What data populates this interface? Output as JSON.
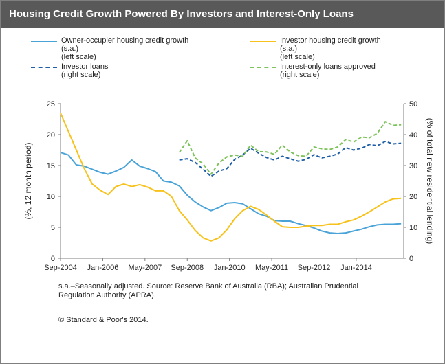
{
  "header": {
    "title": "Housing Credit Growth Powered By Investors  and Interest-Only  Loans"
  },
  "legend": [
    {
      "key": "owner",
      "label": "Owner-occupier housing credit growth\n(s.a.)\n(left scale)",
      "color": "#4aa3d8",
      "dash": ""
    },
    {
      "key": "investor",
      "label": "Investor housing credit growth\n(s.a.)\n(left scale)",
      "color": "#f7c21b",
      "dash": ""
    },
    {
      "key": "investor_loans",
      "label": "Investor loans\n(right scale)",
      "color": "#1f5fa8",
      "dash": "5,3"
    },
    {
      "key": "io_loans",
      "label": "Interest-only loans approved\n(right scale)",
      "color": "#7dc25a",
      "dash": "5,3"
    }
  ],
  "chart_data": {
    "type": "line",
    "title": "Housing Credit Growth Powered By Investors  and Interest-Only  Loans",
    "ylabel": "(%, 12 month period)",
    "y2label": "(% of total new residential lending)",
    "ylim": [
      0,
      25
    ],
    "y2lim": [
      0,
      50
    ],
    "yticks": [
      "0",
      "5",
      "10",
      "15",
      "20",
      "25"
    ],
    "y2ticks": [
      "0",
      "10",
      "20",
      "30",
      "40",
      "50"
    ],
    "x_range": [
      0,
      130
    ],
    "x_tick_labels": [
      {
        "label": "Sep-2004",
        "pos": 0
      },
      {
        "label": "Jan-2006",
        "pos": 16
      },
      {
        "label": "May-2007",
        "pos": 32
      },
      {
        "label": "Sep-2008",
        "pos": 48
      },
      {
        "label": "Jan-2010",
        "pos": 64
      },
      {
        "label": "May-2011",
        "pos": 80
      },
      {
        "label": "Sep-2012",
        "pos": 96
      },
      {
        "label": "Jan-2014",
        "pos": 112
      }
    ],
    "series": [
      {
        "name": "Owner-occupier housing credit growth",
        "axis": "left",
        "color": "#4aa3d8",
        "x": [
          0,
          3,
          6,
          9,
          12,
          15,
          18,
          21,
          24,
          27,
          30,
          33,
          36,
          39,
          42,
          45,
          48,
          51,
          54,
          57,
          60,
          63,
          66,
          69,
          72,
          75,
          78,
          81,
          84,
          87,
          90,
          93,
          96,
          99,
          102,
          105,
          108,
          111,
          114,
          117,
          120,
          123,
          126,
          129
        ],
        "y": [
          17.1,
          16.7,
          15.1,
          14.9,
          14.4,
          13.9,
          13.6,
          14.1,
          14.7,
          15.9,
          14.9,
          14.5,
          14.0,
          12.5,
          12.3,
          11.7,
          10.2,
          9.1,
          8.3,
          7.7,
          8.2,
          8.9,
          9.0,
          8.8,
          8.0,
          7.2,
          6.8,
          6.1,
          6.0,
          6.0,
          5.6,
          5.3,
          4.9,
          4.4,
          4.1,
          4.0,
          4.1,
          4.4,
          4.7,
          5.1,
          5.4,
          5.5,
          5.5,
          5.6
        ]
      },
      {
        "name": "Investor housing credit growth",
        "axis": "left",
        "color": "#f7c21b",
        "x": [
          0,
          3,
          6,
          9,
          12,
          15,
          18,
          21,
          24,
          27,
          30,
          33,
          36,
          39,
          42,
          45,
          48,
          51,
          54,
          57,
          60,
          63,
          66,
          69,
          72,
          75,
          78,
          81,
          84,
          87,
          90,
          93,
          96,
          99,
          102,
          105,
          108,
          111,
          114,
          117,
          120,
          123,
          126,
          129
        ],
        "y": [
          23.5,
          20.5,
          17.5,
          14.5,
          12.0,
          11.0,
          10.3,
          11.6,
          12.0,
          11.6,
          11.9,
          11.5,
          10.9,
          10.9,
          10.0,
          7.7,
          6.2,
          4.5,
          3.3,
          2.8,
          3.3,
          4.6,
          6.4,
          7.7,
          8.4,
          7.9,
          7.0,
          6.0,
          5.1,
          5.0,
          5.0,
          5.2,
          5.3,
          5.3,
          5.5,
          5.5,
          5.9,
          6.2,
          6.8,
          7.5,
          8.3,
          9.1,
          9.6,
          9.7
        ]
      },
      {
        "name": "Investor loans",
        "axis": "right",
        "color": "#1f5fa8",
        "x": [
          45,
          48,
          51,
          54,
          57,
          60,
          63,
          66,
          69,
          72,
          75,
          78,
          81,
          84,
          87,
          90,
          93,
          96,
          99,
          102,
          105,
          108,
          111,
          114,
          117,
          120,
          123,
          126,
          129
        ],
        "y": [
          31.8,
          32.2,
          31.0,
          28.8,
          26.5,
          28.2,
          29.0,
          32.0,
          33.4,
          35.6,
          34.0,
          32.6,
          31.8,
          33.0,
          32.2,
          31.4,
          32.0,
          33.5,
          32.5,
          33.0,
          33.7,
          35.8,
          35.0,
          35.6,
          36.8,
          36.4,
          37.8,
          37.0,
          37.2
        ]
      },
      {
        "name": "Interest-only loans approved",
        "axis": "right",
        "color": "#7dc25a",
        "x": [
          45,
          48,
          51,
          54,
          57,
          60,
          63,
          66,
          69,
          72,
          75,
          78,
          81,
          84,
          87,
          90,
          93,
          96,
          99,
          102,
          105,
          108,
          111,
          114,
          117,
          120,
          123,
          126,
          129
        ],
        "y": [
          34.2,
          38.0,
          32.5,
          30.5,
          27.2,
          30.8,
          32.8,
          33.4,
          33.0,
          36.6,
          34.5,
          34.4,
          33.6,
          36.6,
          34.4,
          33.2,
          33.0,
          36.0,
          35.4,
          35.2,
          36.0,
          38.4,
          37.6,
          39.2,
          39.0,
          40.4,
          44.2,
          43.0,
          43.2
        ]
      }
    ]
  },
  "notes": {
    "source": "s.a.–Seasonally adjusted. Source: Reserve Bank of Australia (RBA); Australian  Prudential\nRegulation Authority (APRA).",
    "copyright": "© Standard & Poor's 2014."
  }
}
